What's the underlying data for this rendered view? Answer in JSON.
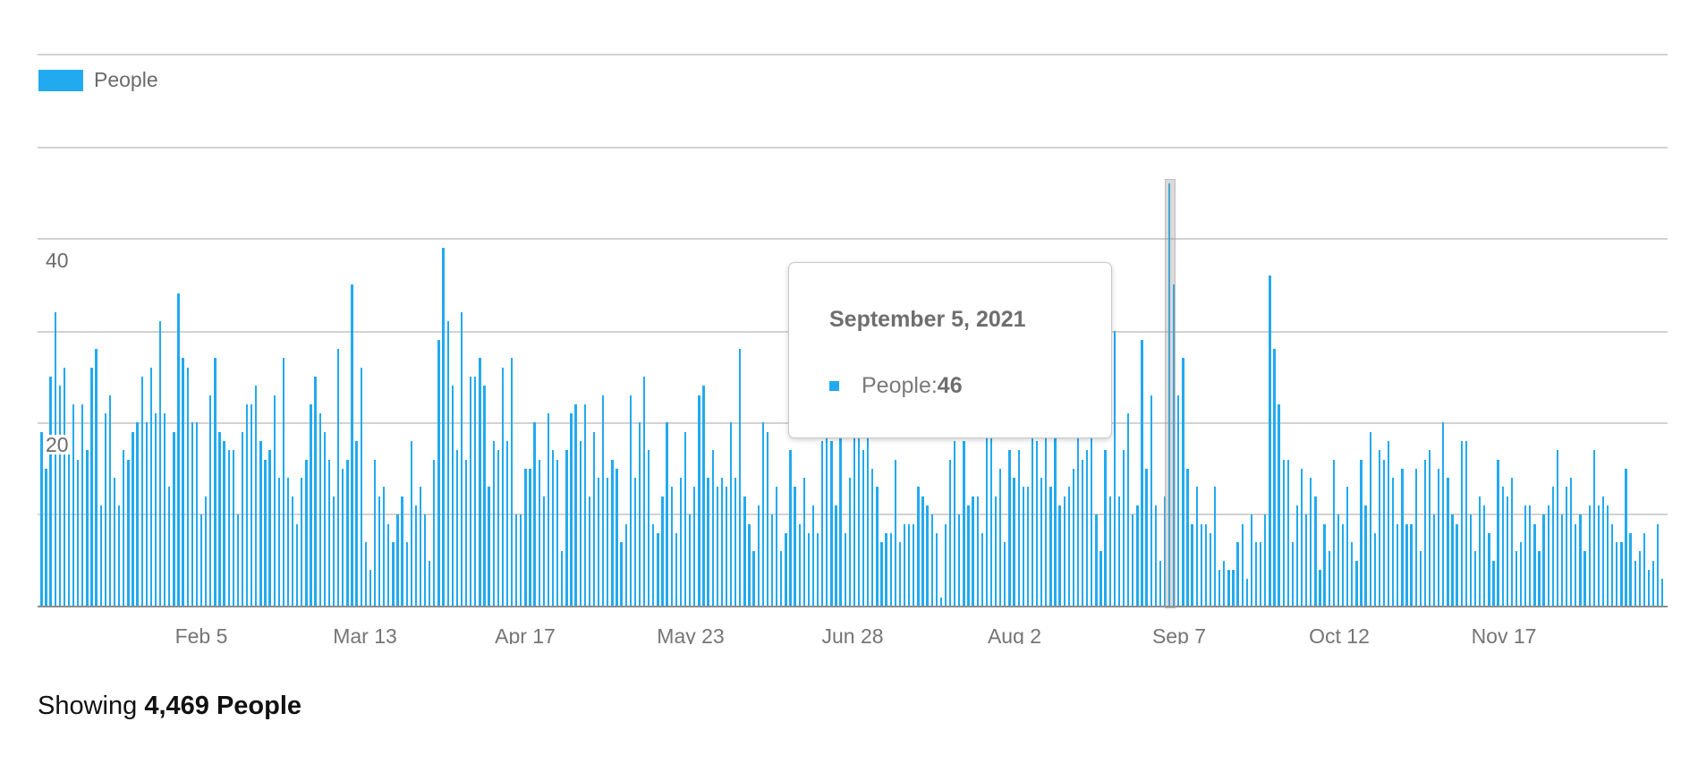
{
  "legend": {
    "label": "People",
    "color": "#22aaf0"
  },
  "y_axis": {
    "labels": [
      {
        "value": 40,
        "text": "40"
      },
      {
        "value": 20,
        "text": "20"
      }
    ]
  },
  "x_axis": {
    "labels": [
      "Feb 5",
      "Mar 13",
      "Apr 17",
      "May 23",
      "Jun 28",
      "Aug 2",
      "Sep 7",
      "Oct 12",
      "Nov 17"
    ]
  },
  "tooltip": {
    "title": "September 5, 2021",
    "series_label": "People: ",
    "value": "46"
  },
  "summary": {
    "prefix": "Showing ",
    "count_label": "4,469 People"
  },
  "chart_data": {
    "type": "bar",
    "title": "",
    "xlabel": "",
    "ylabel": "",
    "series": [
      {
        "name": "People",
        "color": "#22aaf0"
      }
    ],
    "x_start": "2021-01-01",
    "x_end": "2021-12-22",
    "x_interval": "day",
    "x_tick_labels": [
      "Feb 5",
      "Mar 13",
      "Apr 17",
      "May 23",
      "Jun 28",
      "Aug 2",
      "Sep 7",
      "Oct 12",
      "Nov 17"
    ],
    "y_tick_labels": [
      "20",
      "40"
    ],
    "ylim": [
      0,
      60
    ],
    "gridlines": [
      0,
      10,
      20,
      30,
      40,
      50,
      60
    ],
    "grid": true,
    "legend_position": "top-left",
    "highlighted_point": {
      "date": "2021-09-05",
      "label": "September 5, 2021",
      "value": 46
    },
    "total_label": "4,469 People",
    "values": [
      19,
      15,
      25,
      32,
      24,
      26,
      18,
      22,
      16,
      22,
      17,
      26,
      28,
      11,
      21,
      23,
      14,
      11,
      17,
      16,
      19,
      20,
      25,
      20,
      26,
      21,
      31,
      21,
      13,
      19,
      34,
      27,
      26,
      20,
      20,
      10,
      12,
      23,
      27,
      19,
      18,
      17,
      17,
      10,
      19,
      22,
      22,
      24,
      18,
      16,
      17,
      23,
      14,
      27,
      14,
      12,
      9,
      14,
      16,
      22,
      25,
      21,
      19,
      16,
      12,
      28,
      15,
      16,
      35,
      18,
      26,
      7,
      4,
      16,
      12,
      13,
      9,
      7,
      10,
      12,
      7,
      18,
      11,
      13,
      10,
      5,
      16,
      29,
      39,
      31,
      24,
      17,
      32,
      16,
      25,
      25,
      27,
      24,
      13,
      18,
      17,
      26,
      18,
      27,
      10,
      10,
      15,
      15,
      20,
      16,
      12,
      21,
      17,
      16,
      6,
      17,
      21,
      22,
      18,
      22,
      12,
      19,
      14,
      23,
      14,
      16,
      15,
      7,
      9,
      23,
      14,
      20,
      25,
      17,
      9,
      8,
      12,
      20,
      13,
      8,
      14,
      19,
      10,
      13,
      23,
      24,
      14,
      17,
      13,
      14,
      13,
      20,
      14,
      28,
      12,
      9,
      6,
      11,
      20,
      19,
      10,
      13,
      6,
      8,
      17,
      13,
      9,
      14,
      8,
      11,
      8,
      18,
      20,
      18,
      11,
      22,
      8,
      14,
      19,
      19,
      17,
      23,
      15,
      13,
      7,
      8,
      8,
      16,
      7,
      9,
      9,
      9,
      13,
      12,
      11,
      10,
      8,
      1,
      9,
      16,
      18,
      10,
      18,
      11,
      12,
      12,
      8,
      20,
      20,
      12,
      15,
      7,
      17,
      14,
      17,
      13,
      13,
      20,
      18,
      14,
      21,
      13,
      20,
      11,
      12,
      13,
      15,
      19,
      16,
      17,
      24,
      10,
      6,
      17,
      12,
      30,
      12,
      17,
      21,
      10,
      11,
      29,
      15,
      23,
      11,
      5,
      12,
      46,
      35,
      23,
      27,
      15,
      9,
      13,
      9,
      9,
      8,
      13,
      4,
      5,
      4,
      4,
      7,
      9,
      3,
      10,
      7,
      7,
      10,
      36,
      28,
      22,
      16,
      16,
      7,
      11,
      15,
      10,
      14,
      12,
      4,
      9,
      6,
      16,
      10,
      9,
      13,
      7,
      5,
      16,
      11,
      19,
      8,
      17,
      16,
      18,
      14,
      9,
      15,
      9,
      9,
      15,
      6,
      16,
      17,
      10,
      15,
      20,
      14,
      10,
      9,
      18,
      18,
      10,
      6,
      12,
      11,
      8,
      5,
      16,
      13,
      12,
      14,
      6,
      7,
      11,
      11,
      9,
      6,
      10,
      11,
      13,
      17,
      10,
      13,
      14,
      9,
      10,
      6,
      11,
      17,
      11,
      12,
      11,
      9,
      7,
      7,
      15,
      8,
      5,
      6,
      8,
      4,
      5,
      9,
      3
    ]
  }
}
